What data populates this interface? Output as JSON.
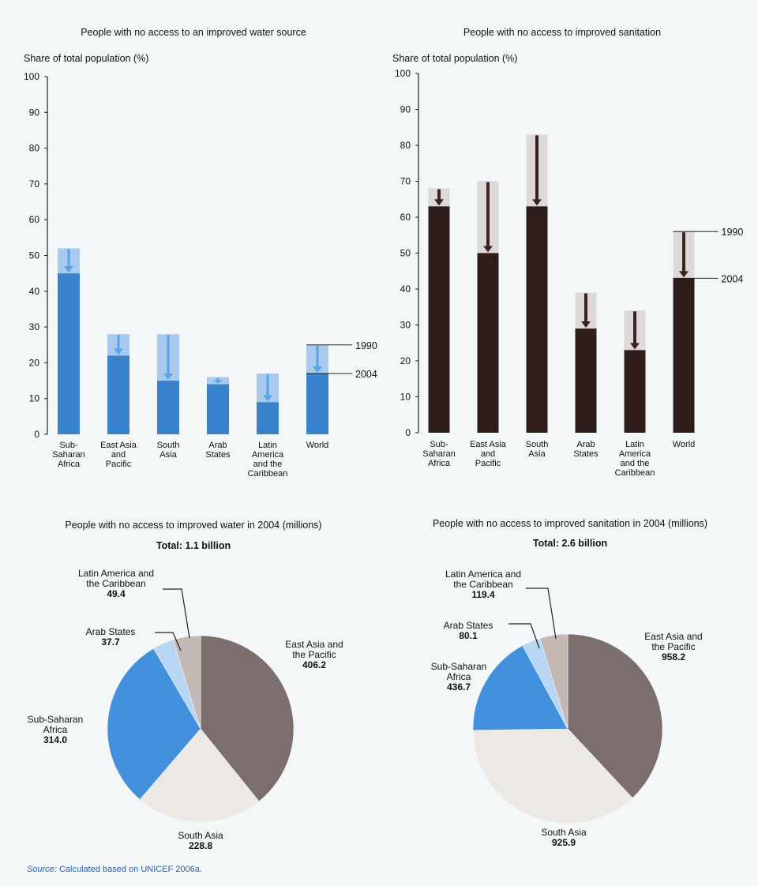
{
  "legend_labels": {
    "start": "1990",
    "end": "2004"
  },
  "source": {
    "label": "Source:",
    "text": " Calculated based on UNICEF 2006a."
  },
  "colors": {
    "water_bar": "#3b82cc",
    "water_bar_light": "#a9caed",
    "water_arrow": "#5aa3e8",
    "san_bar": "#2f1d1b",
    "san_bar_light": "#dcd9d8",
    "san_arrow": "#3a2220",
    "pie_east_asia": "#7c6e6c",
    "pie_south_asia": "#ece8e4",
    "pie_ssa": "#4391dc",
    "pie_arab": "#b8d6f3",
    "pie_latam": "#c4b8b5"
  },
  "chart_data": [
    {
      "type": "bar",
      "title": "People with no access to an improved water source",
      "ylabel": "Share of total population (%)",
      "ylim": [
        0,
        100
      ],
      "yticks": [
        "0",
        "10",
        "20",
        "30",
        "40",
        "50",
        "60",
        "70",
        "80",
        "90",
        "100"
      ],
      "categories": [
        [
          "Sub-",
          "Saharan",
          "Africa"
        ],
        [
          "East Asia",
          "and",
          "Pacific"
        ],
        [
          "South",
          "Asia"
        ],
        [
          "Arab",
          "States"
        ],
        [
          "Latin",
          "America",
          "and the",
          "Caribbean"
        ],
        [
          "World"
        ]
      ],
      "series": [
        {
          "name": "1990",
          "values": [
            52,
            28,
            28,
            16,
            17,
            25
          ]
        },
        {
          "name": "2004",
          "values": [
            45,
            22,
            15,
            14,
            9,
            17
          ]
        }
      ]
    },
    {
      "type": "bar",
      "title": "People with no access to improved sanitation",
      "ylabel": "Share of total population (%)",
      "ylim": [
        0,
        100
      ],
      "yticks": [
        "0",
        "10",
        "20",
        "30",
        "40",
        "50",
        "60",
        "70",
        "80",
        "90",
        "100"
      ],
      "categories": [
        [
          "Sub-",
          "Saharan",
          "Africa"
        ],
        [
          "East Asia",
          "and",
          "Pacific"
        ],
        [
          "South",
          "Asia"
        ],
        [
          "Arab",
          "States"
        ],
        [
          "Latin",
          "America",
          "and the",
          "Caribbean"
        ],
        [
          "World"
        ]
      ],
      "series": [
        {
          "name": "1990",
          "values": [
            68,
            70,
            83,
            39,
            34,
            56
          ]
        },
        {
          "name": "2004",
          "values": [
            63,
            50,
            63,
            29,
            23,
            43
          ]
        }
      ]
    },
    {
      "type": "pie",
      "title": "People with no access to improved water in 2004 (millions)",
      "subtitle": "Total: 1.1 billion",
      "slices": [
        {
          "label": [
            "East Asia and",
            "the Pacific"
          ],
          "value": 406.2,
          "value_label": "406.2",
          "color_key": "pie_east_asia"
        },
        {
          "label": [
            "South Asia"
          ],
          "value": 228.8,
          "value_label": "228.8",
          "color_key": "pie_south_asia"
        },
        {
          "label": [
            "Sub-Saharan",
            "Africa"
          ],
          "value": 314.0,
          "value_label": "314.0",
          "color_key": "pie_ssa"
        },
        {
          "label": [
            "Arab States"
          ],
          "value": 37.7,
          "value_label": "37.7",
          "color_key": "pie_arab"
        },
        {
          "label": [
            "Latin America and",
            "the Caribbean"
          ],
          "value": 49.4,
          "value_label": "49.4",
          "color_key": "pie_latam"
        }
      ]
    },
    {
      "type": "pie",
      "title": "People with no access to improved sanitation in 2004 (millions)",
      "subtitle": "Total: 2.6 billion",
      "slices": [
        {
          "label": [
            "East Asia and",
            "the Pacific"
          ],
          "value": 958.2,
          "value_label": "958.2",
          "color_key": "pie_east_asia"
        },
        {
          "label": [
            "South Asia"
          ],
          "value": 925.9,
          "value_label": "925.9",
          "color_key": "pie_south_asia"
        },
        {
          "label": [
            "Sub-Saharan",
            "Africa"
          ],
          "value": 436.7,
          "value_label": "436.7",
          "color_key": "pie_ssa"
        },
        {
          "label": [
            "Arab States"
          ],
          "value": 80.1,
          "value_label": "80.1",
          "color_key": "pie_arab"
        },
        {
          "label": [
            "Latin America and",
            "the Caribbean"
          ],
          "value": 119.4,
          "value_label": "119.4",
          "color_key": "pie_latam"
        }
      ]
    }
  ]
}
